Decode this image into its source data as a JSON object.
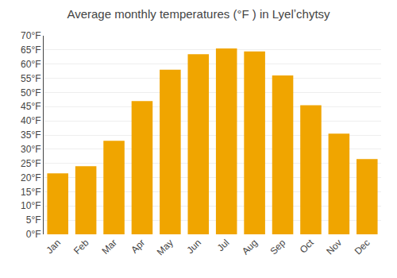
{
  "chart_data": {
    "type": "bar",
    "title": "Average monthly temperatures (°F ) in Lyelʼchytsy",
    "categories": [
      "Jan",
      "Feb",
      "Mar",
      "Apr",
      "May",
      "Jun",
      "Jul",
      "Aug",
      "Sep",
      "Oct",
      "Nov",
      "Dec"
    ],
    "values": [
      21.5,
      24.0,
      33.0,
      47.0,
      58.0,
      63.5,
      65.5,
      64.5,
      56.0,
      45.5,
      35.5,
      26.5
    ],
    "color": "#F0A500",
    "ylim": [
      0,
      70
    ],
    "yticks": [
      {
        "value": 0,
        "label": "0°F"
      },
      {
        "value": 5,
        "label": "5°F"
      },
      {
        "value": 10,
        "label": "10°F"
      },
      {
        "value": 15,
        "label": "15°F"
      },
      {
        "value": 20,
        "label": "20°F"
      },
      {
        "value": 25,
        "label": "25°F"
      },
      {
        "value": 30,
        "label": "30°F"
      },
      {
        "value": 35,
        "label": "35°F"
      },
      {
        "value": 40,
        "label": "40°F"
      },
      {
        "value": 45,
        "label": "45°F"
      },
      {
        "value": 50,
        "label": "50°F"
      },
      {
        "value": 55,
        "label": "55°F"
      },
      {
        "value": 60,
        "label": "60°F"
      },
      {
        "value": 65,
        "label": "65°F"
      },
      {
        "value": 70,
        "label": "70°F"
      }
    ],
    "grid": true
  }
}
